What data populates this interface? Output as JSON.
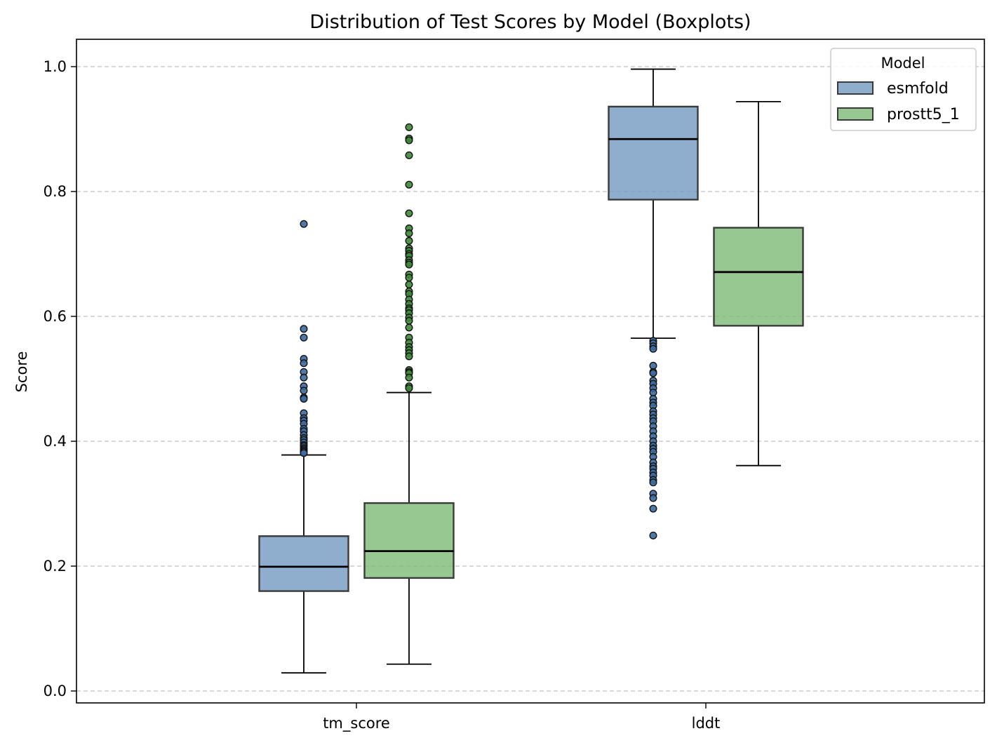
{
  "chart_data": {
    "type": "boxplot",
    "title": "Distribution of Test Scores by Model (Boxplots)",
    "xlabel": "",
    "ylabel": "Score",
    "ylim": [
      -0.02,
      1.04
    ],
    "yticks": [
      "0.0",
      "0.2",
      "0.4",
      "0.6",
      "0.8",
      "1.0"
    ],
    "categories": [
      "tm_score",
      "lddt"
    ],
    "grid": "horizontal dashed",
    "legend": {
      "title": "Model",
      "placement": "top-right"
    },
    "series": [
      {
        "name": "esmfold",
        "color": "#7097c0",
        "outlier_color": "#3c6aa0",
        "boxes": [
          {
            "category": "tm_score",
            "whisker_low": 0.029,
            "q1": 0.16,
            "median": 0.199,
            "q3": 0.248,
            "whisker_high": 0.378,
            "outliers": [
              0.748,
              0.58,
              0.566,
              0.532,
              0.525,
              0.511,
              0.502,
              0.488,
              0.481,
              0.47,
              0.468,
              0.445,
              0.437,
              0.433,
              0.428,
              0.42,
              0.416,
              0.41,
              0.405,
              0.402,
              0.398,
              0.394,
              0.392,
              0.389,
              0.387,
              0.385,
              0.383,
              0.381
            ]
          },
          {
            "category": "lddt",
            "whisker_low": 0.565,
            "q1": 0.787,
            "median": 0.884,
            "q3": 0.936,
            "whisker_high": 0.996,
            "outliers": [
              0.561,
              0.557,
              0.552,
              0.548,
              0.521,
              0.511,
              0.509,
              0.497,
              0.492,
              0.485,
              0.478,
              0.468,
              0.462,
              0.457,
              0.448,
              0.443,
              0.437,
              0.432,
              0.424,
              0.416,
              0.408,
              0.4,
              0.393,
              0.388,
              0.383,
              0.375,
              0.366,
              0.36,
              0.356,
              0.35,
              0.345,
              0.338,
              0.334,
              0.316,
              0.309,
              0.292,
              0.249
            ]
          }
        ]
      },
      {
        "name": "prostt5_1",
        "color": "#7ab872",
        "outlier_color": "#3e8a3a",
        "boxes": [
          {
            "category": "tm_score",
            "whisker_low": 0.043,
            "q1": 0.181,
            "median": 0.224,
            "q3": 0.301,
            "whisker_high": 0.478,
            "outliers": [
              0.903,
              0.885,
              0.882,
              0.858,
              0.811,
              0.765,
              0.741,
              0.733,
              0.721,
              0.709,
              0.705,
              0.7,
              0.697,
              0.69,
              0.686,
              0.683,
              0.667,
              0.662,
              0.651,
              0.64,
              0.636,
              0.627,
              0.62,
              0.613,
              0.61,
              0.605,
              0.598,
              0.593,
              0.582,
              0.566,
              0.558,
              0.551,
              0.546,
              0.541,
              0.536,
              0.514,
              0.511,
              0.509,
              0.502,
              0.488,
              0.485
            ]
          },
          {
            "category": "lddt",
            "whisker_low": 0.361,
            "q1": 0.585,
            "median": 0.671,
            "q3": 0.742,
            "whisker_high": 0.944,
            "outliers": []
          }
        ]
      }
    ]
  }
}
